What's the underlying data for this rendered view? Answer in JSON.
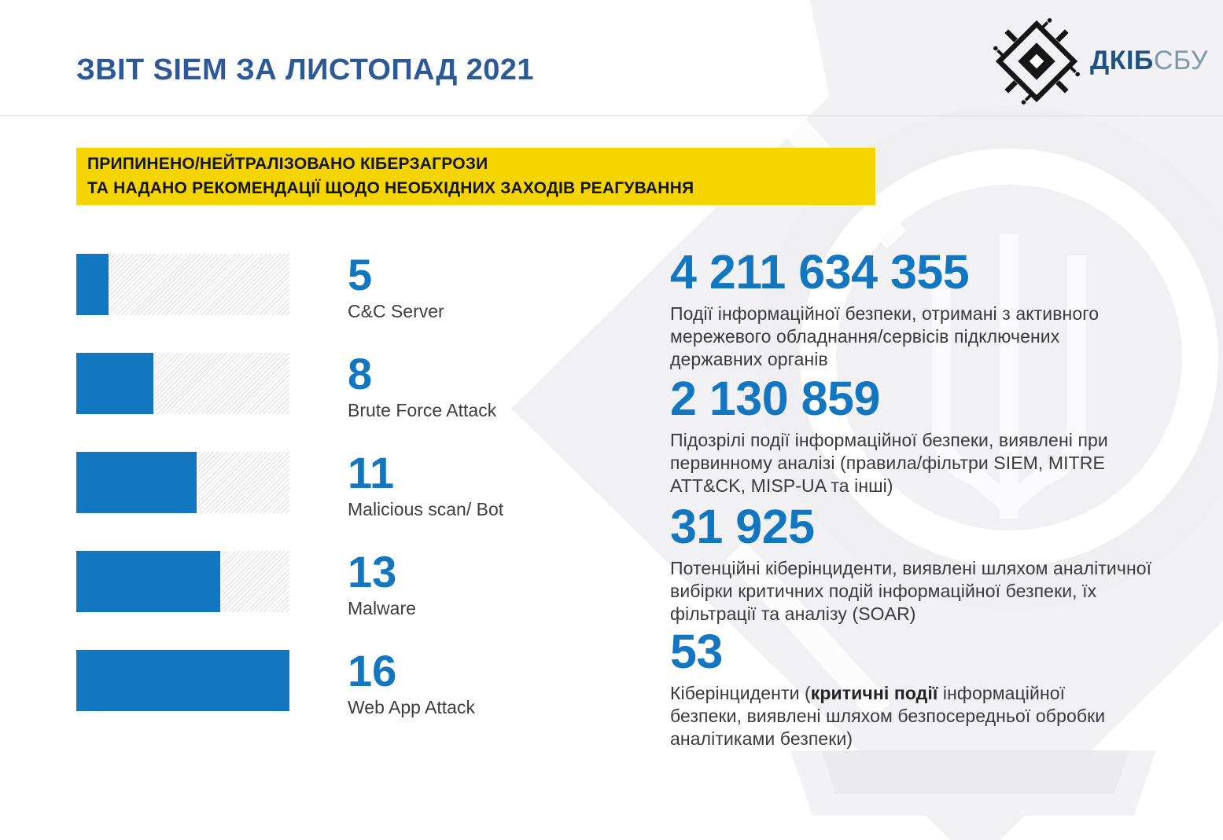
{
  "header": {
    "title": "ЗВІТ SIEM ЗА ЛИСТОПАД 2021",
    "logo": {
      "primary": "ДКІБ",
      "secondary": "СБУ"
    }
  },
  "banner": {
    "text": "ПРИПИНЕНО/НЕЙТРАЛІЗОВАНО КІБЕРЗАГРОЗИ\nТА НАДАНО РЕКОМЕНДАЦІЇ ЩОДО НЕОБХІДНИХ ЗАХОДІВ РЕАГУВАННЯ"
  },
  "chart_data": {
    "type": "bar",
    "orientation": "horizontal",
    "title": "",
    "categories": [
      "C&C Server",
      "Brute Force Attack",
      "Malicious scan/ Bot",
      "Malware",
      "Web App Attack"
    ],
    "values": [
      5,
      8,
      11,
      13,
      16
    ],
    "xlim": [
      0,
      16
    ],
    "grid": false,
    "legend": false,
    "bar_fill_percent": [
      15.2,
      36.1,
      56.5,
      67.7,
      100
    ],
    "bar_color": "#1276c0",
    "track_style": "diagonal-hatch"
  },
  "stats": [
    {
      "value": "4 211 634 355",
      "description": "Події інформаційної безпеки, отримані з активного\nмережевого обладнання/сервісів підключених\nдержавних органів"
    },
    {
      "value": "2 130 859",
      "description": "Підозрілі події інформаційної безпеки, виявлені при\nпервинному аналізі (правила/фільтри SIEM, MITRE\nATT&CK, MISP-UA та інші)"
    },
    {
      "value": "31 925",
      "description": "Потенційні кіберінциденти, виявлені шляхом аналітичної\nвибірки критичних подій інформаційної безпеки, їх\nфільтрації та аналізу (SOAR)"
    },
    {
      "value": "53",
      "desc_before": "Кіберінциденти (",
      "desc_bold": "критичні події",
      "desc_after": " інформаційної\nбезпеки, виявлені шляхом безпосередньої обробки\nаналітиками безпеки)"
    }
  ],
  "colors": {
    "accent_blue": "#1276c0",
    "title_blue": "#2d5a96",
    "banner_yellow": "#f5d500",
    "body_text": "#3a3a3a",
    "logo_dark_blue": "#205280",
    "logo_light_blue": "#7f96ab",
    "watermark_gray": "#f1f1f3"
  }
}
